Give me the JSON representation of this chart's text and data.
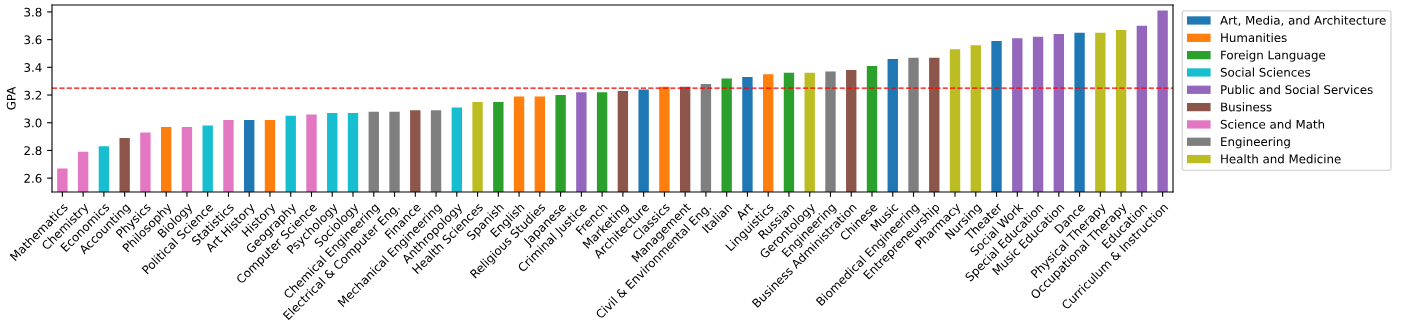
{
  "chart_data": {
    "type": "bar",
    "ylabel": "GPA",
    "categories": [
      "Mathematics",
      "Chemistry",
      "Economics",
      "Accounting",
      "Physics",
      "Philosophy",
      "Biology",
      "Political Science",
      "Statistics",
      "Art History",
      "History",
      "Geography",
      "Computer Science",
      "Psychology",
      "Sociology",
      "Chemical Engineering",
      "Electrical & Computer Eng.",
      "Finance",
      "Mechanical Engineering",
      "Anthropology",
      "Health Sciences",
      "Spanish",
      "English",
      "Religious Studies",
      "Japanese",
      "Criminal Justice",
      "French",
      "Marketing",
      "Architecture",
      "Classics",
      "Management",
      "Civil & Environmental Eng.",
      "Italian",
      "Art",
      "Linguistics",
      "Russian",
      "Gerontology",
      "Engineering",
      "Business Administration",
      "Chinese",
      "Music",
      "Biomedical Engineering",
      "Entrepreneurship",
      "Pharmacy",
      "Nursing",
      "Theater",
      "Social Work",
      "Special Education",
      "Music Education",
      "Dance",
      "Physical Therapy",
      "Occupational Therapy",
      "Education",
      "Curriculum & Instruction"
    ],
    "series": [
      {
        "name": "Art, Media, and Architecture",
        "color": "#1f77b4",
        "values": [
          null,
          null,
          null,
          null,
          null,
          null,
          null,
          null,
          null,
          3.02,
          null,
          null,
          null,
          null,
          null,
          null,
          null,
          null,
          null,
          null,
          null,
          null,
          null,
          null,
          null,
          null,
          null,
          null,
          3.24,
          null,
          null,
          null,
          null,
          3.33,
          null,
          null,
          null,
          null,
          null,
          null,
          3.46,
          null,
          null,
          null,
          null,
          3.59,
          null,
          null,
          null,
          3.65,
          null,
          null,
          null,
          null
        ]
      },
      {
        "name": "Humanities",
        "color": "#ff7f0e",
        "values": [
          null,
          null,
          null,
          null,
          null,
          2.97,
          null,
          null,
          null,
          null,
          3.02,
          null,
          null,
          null,
          null,
          null,
          null,
          null,
          null,
          null,
          null,
          null,
          3.19,
          3.19,
          null,
          null,
          null,
          null,
          null,
          3.26,
          null,
          null,
          null,
          null,
          3.35,
          null,
          null,
          null,
          null,
          null,
          null,
          null,
          null,
          null,
          null,
          null,
          null,
          null,
          null,
          null,
          null,
          null,
          null,
          null
        ]
      },
      {
        "name": "Foreign Language",
        "color": "#2ca02c",
        "values": [
          null,
          null,
          null,
          null,
          null,
          null,
          null,
          null,
          null,
          null,
          null,
          null,
          null,
          null,
          null,
          null,
          null,
          null,
          null,
          null,
          null,
          3.15,
          null,
          null,
          3.2,
          null,
          3.22,
          null,
          null,
          null,
          null,
          null,
          3.32,
          null,
          null,
          3.36,
          null,
          null,
          null,
          3.41,
          null,
          null,
          null,
          null,
          null,
          null,
          null,
          null,
          null,
          null,
          null,
          null,
          null,
          null
        ]
      },
      {
        "name": "Social Sciences",
        "color": "#17becf",
        "values": [
          null,
          null,
          2.83,
          null,
          null,
          null,
          null,
          2.98,
          null,
          null,
          null,
          3.05,
          null,
          3.07,
          3.07,
          null,
          null,
          null,
          null,
          3.11,
          null,
          null,
          null,
          null,
          null,
          null,
          null,
          null,
          null,
          null,
          null,
          null,
          null,
          null,
          null,
          null,
          null,
          null,
          null,
          null,
          null,
          null,
          null,
          null,
          null,
          null,
          null,
          null,
          null,
          null,
          null,
          null,
          null,
          null
        ]
      },
      {
        "name": "Public and Social Services",
        "color": "#9467bd",
        "values": [
          null,
          null,
          null,
          null,
          null,
          null,
          null,
          null,
          null,
          null,
          null,
          null,
          null,
          null,
          null,
          null,
          null,
          null,
          null,
          null,
          null,
          null,
          null,
          null,
          null,
          3.22,
          null,
          null,
          null,
          null,
          null,
          null,
          null,
          null,
          null,
          null,
          null,
          null,
          null,
          null,
          null,
          null,
          null,
          null,
          null,
          null,
          3.61,
          3.62,
          3.64,
          null,
          null,
          null,
          3.7,
          3.81
        ]
      },
      {
        "name": "Business",
        "color": "#8c564b",
        "values": [
          null,
          null,
          null,
          2.89,
          null,
          null,
          null,
          null,
          null,
          null,
          null,
          null,
          null,
          null,
          null,
          null,
          null,
          3.09,
          null,
          null,
          null,
          null,
          null,
          null,
          null,
          null,
          null,
          3.23,
          null,
          null,
          3.26,
          null,
          null,
          null,
          null,
          null,
          null,
          null,
          3.38,
          null,
          null,
          null,
          3.47,
          null,
          null,
          null,
          null,
          null,
          null,
          null,
          null,
          null,
          null,
          null
        ]
      },
      {
        "name": "Science and Math",
        "color": "#e377c2",
        "values": [
          2.67,
          2.79,
          null,
          null,
          2.93,
          null,
          2.97,
          null,
          3.02,
          null,
          null,
          null,
          3.06,
          null,
          null,
          null,
          null,
          null,
          null,
          null,
          null,
          null,
          null,
          null,
          null,
          null,
          null,
          null,
          null,
          null,
          null,
          null,
          null,
          null,
          null,
          null,
          null,
          null,
          null,
          null,
          null,
          null,
          null,
          null,
          null,
          null,
          null,
          null,
          null,
          null,
          null,
          null,
          null,
          null
        ]
      },
      {
        "name": "Engineering",
        "color": "#7f7f7f",
        "values": [
          null,
          null,
          null,
          null,
          null,
          null,
          null,
          null,
          null,
          null,
          null,
          null,
          null,
          null,
          null,
          3.08,
          3.08,
          null,
          3.09,
          null,
          null,
          null,
          null,
          null,
          null,
          null,
          null,
          null,
          null,
          null,
          null,
          3.28,
          null,
          null,
          null,
          null,
          null,
          3.37,
          null,
          null,
          null,
          3.47,
          null,
          null,
          null,
          null,
          null,
          null,
          null,
          null,
          null,
          null,
          null,
          null
        ]
      },
      {
        "name": "Health and Medicine",
        "color": "#bcbd22",
        "values": [
          null,
          null,
          null,
          null,
          null,
          null,
          null,
          null,
          null,
          null,
          null,
          null,
          null,
          null,
          null,
          null,
          null,
          null,
          null,
          null,
          3.15,
          null,
          null,
          null,
          null,
          null,
          null,
          null,
          null,
          null,
          null,
          null,
          null,
          null,
          null,
          null,
          3.36,
          null,
          null,
          null,
          null,
          null,
          null,
          3.53,
          3.56,
          null,
          null,
          null,
          null,
          null,
          3.65,
          3.67,
          null,
          null
        ]
      }
    ],
    "ylim": [
      2.5,
      3.85
    ],
    "yticks": [
      {
        "value": 2.6,
        "label": "2.6"
      },
      {
        "value": 2.8,
        "label": "2.8"
      },
      {
        "value": 3.0,
        "label": "3.0"
      },
      {
        "value": 3.2,
        "label": "3.2"
      },
      {
        "value": 3.4,
        "label": "3.4"
      },
      {
        "value": 3.6,
        "label": "3.6"
      },
      {
        "value": 3.8,
        "label": "3.8"
      }
    ],
    "ref_lines": [
      {
        "axis": "y",
        "value": 3.25,
        "color": "#ff0000",
        "line_style": "dashed"
      }
    ],
    "grid": false,
    "legend": "right"
  }
}
